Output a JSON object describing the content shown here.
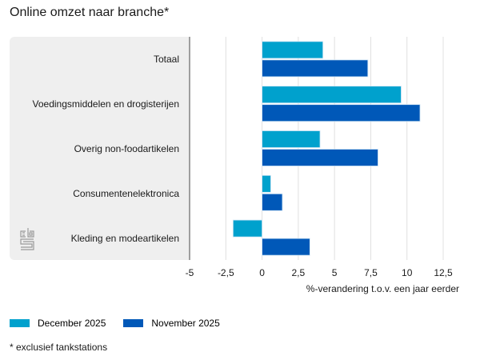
{
  "chart_data": {
    "type": "bar",
    "orientation": "horizontal",
    "title": "Online omzet naar branche*",
    "xlabel": "%-verandering t.o.v. een jaar eerder",
    "ylabel": "",
    "xlim": [
      -5,
      12.5
    ],
    "xticks": [
      -5,
      -2.5,
      0,
      2.5,
      5,
      7.5,
      10,
      12.5
    ],
    "xtick_labels": [
      "-5",
      "-2,5",
      "0",
      "2,5",
      "5",
      "7,5",
      "10",
      "12,5"
    ],
    "grid": true,
    "legend_position": "bottom-left",
    "categories": [
      "Totaal",
      "Voedingsmiddelen en drogisterijen",
      "Overig non-foodartikelen",
      "Consumentenelektronica",
      "Kleding en modeartikelen"
    ],
    "series": [
      {
        "name": "December 2025",
        "color": "#00a1cd",
        "values": [
          4.2,
          9.6,
          4.0,
          0.6,
          -2.0
        ]
      },
      {
        "name": "November 2025",
        "color": "#0058b8",
        "values": [
          7.3,
          10.9,
          8.0,
          1.4,
          3.3
        ]
      }
    ],
    "footnote": "* exclusief tankstations"
  },
  "colors": {
    "panel": "#efefef",
    "grid": "#e0e0e0",
    "axis": "#666666"
  }
}
